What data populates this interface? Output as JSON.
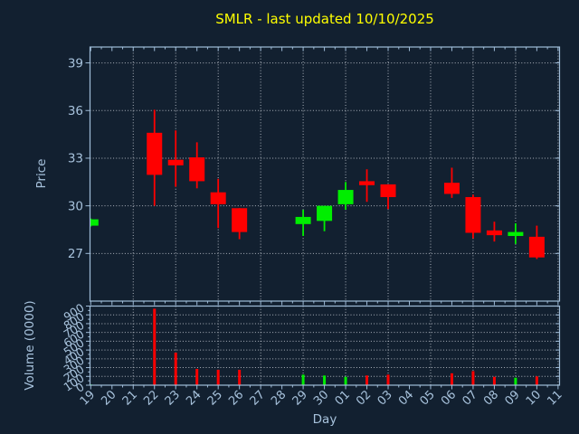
{
  "colors": {
    "background": "#122030",
    "frame": "#9fbcd8",
    "grid": "#c9ced6",
    "text": "#a7c2dc",
    "title": "#ffff00",
    "up": "#00ee00",
    "down": "#ff0000"
  },
  "chart_data": {
    "type": "candlestick",
    "title": "SMLR - last updated 10/10/2025",
    "xlabel": "Day",
    "ylabel_price": "Price",
    "ylabel_volume": "Volume (0000)",
    "x_categories": [
      "19",
      "20",
      "21",
      "22",
      "23",
      "24",
      "25",
      "26",
      "27",
      "28",
      "29",
      "30",
      "01",
      "02",
      "03",
      "04",
      "05",
      "06",
      "07",
      "08",
      "09",
      "10",
      "11"
    ],
    "price_axis": {
      "ticks": [
        27,
        30,
        33,
        36,
        39
      ],
      "ylim": [
        24,
        40
      ],
      "grid": "dotted"
    },
    "volume_axis": {
      "ticks": [
        0,
        100,
        200,
        300,
        400,
        500,
        600,
        700,
        800,
        900
      ],
      "ylim": [
        0,
        900
      ],
      "grid": "dotted"
    },
    "up_color": "#00ee00",
    "down_color": "#ff0000",
    "candles": [
      {
        "day": "19",
        "open": 28.75,
        "high": 29.2,
        "low": 28.7,
        "close": 29.15,
        "volume": 8
      },
      {
        "day": "22",
        "open": 34.6,
        "high": 36.05,
        "low": 30.0,
        "close": 31.95,
        "volume": 870
      },
      {
        "day": "23",
        "open": 32.9,
        "high": 34.75,
        "low": 31.2,
        "close": 32.55,
        "volume": 370
      },
      {
        "day": "24",
        "open": 33.05,
        "high": 34.0,
        "low": 31.1,
        "close": 31.55,
        "volume": 185
      },
      {
        "day": "25",
        "open": 30.85,
        "high": 31.7,
        "low": 28.6,
        "close": 30.1,
        "volume": 175
      },
      {
        "day": "26",
        "open": 29.85,
        "high": 29.85,
        "low": 27.9,
        "close": 28.35,
        "volume": 175
      },
      {
        "day": "29",
        "open": 28.85,
        "high": 29.75,
        "low": 28.1,
        "close": 29.3,
        "volume": 120
      },
      {
        "day": "30",
        "open": 29.05,
        "high": 30.0,
        "low": 28.4,
        "close": 30.0,
        "volume": 110
      },
      {
        "day": "01",
        "open": 30.1,
        "high": 31.5,
        "low": 29.75,
        "close": 31.0,
        "volume": 95
      },
      {
        "day": "02",
        "open": 31.55,
        "high": 32.3,
        "low": 30.25,
        "close": 31.3,
        "volume": 110
      },
      {
        "day": "03",
        "open": 31.35,
        "high": 31.35,
        "low": 29.8,
        "close": 30.55,
        "volume": 120
      },
      {
        "day": "06",
        "open": 31.45,
        "high": 32.4,
        "low": 30.5,
        "close": 30.75,
        "volume": 135
      },
      {
        "day": "07",
        "open": 30.55,
        "high": 30.7,
        "low": 27.95,
        "close": 28.3,
        "volume": 160
      },
      {
        "day": "08",
        "open": 28.45,
        "high": 29.0,
        "low": 27.75,
        "close": 28.15,
        "volume": 95
      },
      {
        "day": "09",
        "open": 28.1,
        "high": 28.9,
        "low": 27.6,
        "close": 28.35,
        "volume": 85
      },
      {
        "day": "10",
        "open": 28.05,
        "high": 28.75,
        "low": 26.65,
        "close": 26.75,
        "volume": 100
      }
    ]
  }
}
